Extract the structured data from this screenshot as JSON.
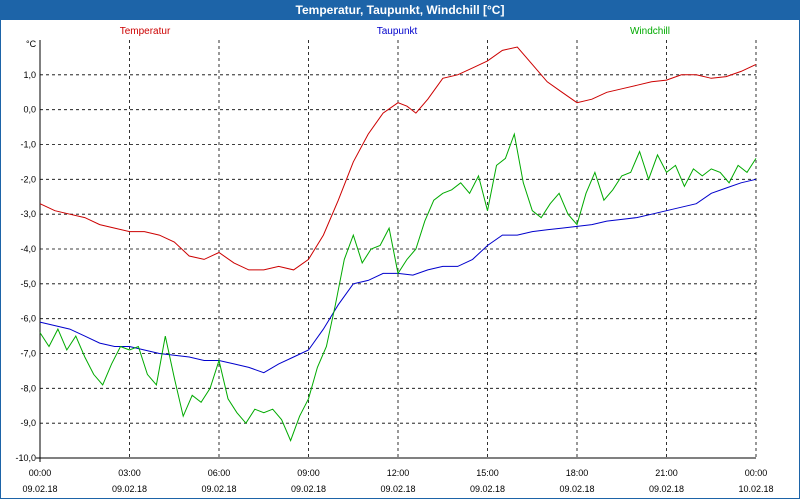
{
  "chart_data": {
    "type": "line",
    "title": "Temperatur, Taupunkt, Windchill [°C]",
    "ylabel": "°C",
    "ylim": [
      -10,
      2
    ],
    "xlim": [
      0,
      24
    ],
    "grid": true,
    "legend_position": "top",
    "yticks": [
      {
        "value": 1,
        "label": "1,0"
      },
      {
        "value": 0,
        "label": "0,0"
      },
      {
        "value": -1,
        "label": "-1,0"
      },
      {
        "value": -2,
        "label": "-2,0"
      },
      {
        "value": -3,
        "label": "-3,0"
      },
      {
        "value": -4,
        "label": "-4,0"
      },
      {
        "value": -5,
        "label": "-5,0"
      },
      {
        "value": -6,
        "label": "-6,0"
      },
      {
        "value": -7,
        "label": "-7,0"
      },
      {
        "value": -8,
        "label": "-8,0"
      },
      {
        "value": -9,
        "label": "-9,0"
      },
      {
        "value": -10,
        "label": "-10,0"
      }
    ],
    "xticks": [
      {
        "value": 0,
        "time": "00:00",
        "date": "09.02.18"
      },
      {
        "value": 3,
        "time": "03:00",
        "date": "09.02.18"
      },
      {
        "value": 6,
        "time": "06:00",
        "date": "09.02.18"
      },
      {
        "value": 9,
        "time": "09:00",
        "date": "09.02.18"
      },
      {
        "value": 12,
        "time": "12:00",
        "date": "09.02.18"
      },
      {
        "value": 15,
        "time": "15:00",
        "date": "09.02.18"
      },
      {
        "value": 18,
        "time": "18:00",
        "date": "09.02.18"
      },
      {
        "value": 21,
        "time": "21:00",
        "date": "09.02.18"
      },
      {
        "value": 24,
        "time": "00:00",
        "date": "10.02.18"
      }
    ],
    "series": [
      {
        "name": "Temperatur",
        "color": "#cc0000",
        "x": [
          0,
          0.5,
          1,
          1.5,
          2,
          2.5,
          3,
          3.5,
          4,
          4.5,
          5,
          5.5,
          6,
          6.5,
          7,
          7.5,
          8,
          8.5,
          9,
          9.5,
          10,
          10.5,
          11,
          11.5,
          12,
          12.3,
          12.6,
          13,
          13.5,
          14,
          14.5,
          15,
          15.5,
          16,
          16.5,
          17,
          17.5,
          18,
          18.5,
          19,
          19.5,
          20,
          20.5,
          21,
          21.5,
          22,
          22.5,
          23,
          23.5,
          24
        ],
        "values": [
          -2.7,
          -2.9,
          -3.0,
          -3.1,
          -3.3,
          -3.4,
          -3.5,
          -3.5,
          -3.6,
          -3.8,
          -4.2,
          -4.3,
          -4.1,
          -4.4,
          -4.6,
          -4.6,
          -4.5,
          -4.6,
          -4.3,
          -3.6,
          -2.6,
          -1.5,
          -0.7,
          -0.1,
          0.2,
          0.1,
          -0.1,
          0.3,
          0.9,
          1.0,
          1.2,
          1.4,
          1.7,
          1.8,
          1.3,
          0.8,
          0.5,
          0.2,
          0.3,
          0.5,
          0.6,
          0.7,
          0.8,
          0.85,
          1.0,
          1.0,
          0.9,
          0.95,
          1.1,
          1.3
        ]
      },
      {
        "name": "Taupunkt",
        "color": "#0000cc",
        "x": [
          0,
          0.5,
          1,
          1.5,
          2,
          2.5,
          3,
          3.5,
          4,
          4.5,
          5,
          5.5,
          6,
          6.5,
          7,
          7.5,
          8,
          8.5,
          9,
          9.5,
          10,
          10.5,
          11,
          11.5,
          12,
          12.5,
          13,
          13.5,
          14,
          14.5,
          15,
          15.5,
          16,
          16.5,
          17,
          17.5,
          18,
          18.5,
          19,
          19.5,
          20,
          20.5,
          21,
          21.5,
          22,
          22.5,
          23,
          23.5,
          24
        ],
        "values": [
          -6.1,
          -6.2,
          -6.3,
          -6.5,
          -6.7,
          -6.8,
          -6.8,
          -6.9,
          -7.0,
          -7.05,
          -7.1,
          -7.2,
          -7.2,
          -7.3,
          -7.4,
          -7.55,
          -7.3,
          -7.1,
          -6.9,
          -6.3,
          -5.6,
          -5.0,
          -4.9,
          -4.7,
          -4.7,
          -4.75,
          -4.6,
          -4.5,
          -4.5,
          -4.3,
          -3.9,
          -3.6,
          -3.6,
          -3.5,
          -3.45,
          -3.4,
          -3.35,
          -3.3,
          -3.2,
          -3.15,
          -3.1,
          -3.0,
          -2.9,
          -2.8,
          -2.7,
          -2.4,
          -2.25,
          -2.1,
          -2.0
        ]
      },
      {
        "name": "Windchill",
        "color": "#00aa00",
        "x": [
          0,
          0.3,
          0.6,
          0.9,
          1.2,
          1.5,
          1.8,
          2.1,
          2.4,
          2.7,
          3.0,
          3.3,
          3.6,
          3.9,
          4.2,
          4.5,
          4.8,
          5.1,
          5.4,
          5.7,
          6.0,
          6.3,
          6.6,
          6.9,
          7.2,
          7.5,
          7.8,
          8.1,
          8.4,
          8.7,
          9.0,
          9.3,
          9.6,
          9.9,
          10.2,
          10.5,
          10.8,
          11.1,
          11.4,
          11.7,
          12.0,
          12.3,
          12.6,
          12.9,
          13.2,
          13.5,
          13.8,
          14.1,
          14.4,
          14.7,
          15.0,
          15.3,
          15.6,
          15.9,
          16.2,
          16.5,
          16.8,
          17.1,
          17.4,
          17.7,
          18.0,
          18.3,
          18.6,
          18.9,
          19.2,
          19.5,
          19.8,
          20.1,
          20.4,
          20.7,
          21.0,
          21.3,
          21.6,
          21.9,
          22.2,
          22.5,
          22.8,
          23.1,
          23.4,
          23.7,
          24.0
        ],
        "values": [
          -6.4,
          -6.8,
          -6.3,
          -6.9,
          -6.5,
          -7.1,
          -7.6,
          -7.9,
          -7.3,
          -6.8,
          -6.9,
          -6.8,
          -7.6,
          -7.9,
          -6.5,
          -7.7,
          -8.8,
          -8.2,
          -8.4,
          -8.0,
          -7.2,
          -8.3,
          -8.7,
          -9.0,
          -8.6,
          -8.7,
          -8.6,
          -8.9,
          -9.5,
          -8.8,
          -8.3,
          -7.4,
          -6.8,
          -5.6,
          -4.3,
          -3.6,
          -4.4,
          -4.0,
          -3.9,
          -3.4,
          -4.7,
          -4.3,
          -4.0,
          -3.2,
          -2.6,
          -2.4,
          -2.3,
          -2.1,
          -2.4,
          -1.9,
          -2.9,
          -1.6,
          -1.4,
          -0.7,
          -2.1,
          -2.9,
          -3.1,
          -2.7,
          -2.4,
          -3.0,
          -3.3,
          -2.4,
          -1.8,
          -2.6,
          -2.3,
          -1.9,
          -1.8,
          -1.2,
          -2.0,
          -1.3,
          -1.8,
          -1.6,
          -2.2,
          -1.7,
          -1.9,
          -1.7,
          -1.8,
          -2.1,
          -1.6,
          -1.8,
          -1.4
        ]
      }
    ]
  }
}
